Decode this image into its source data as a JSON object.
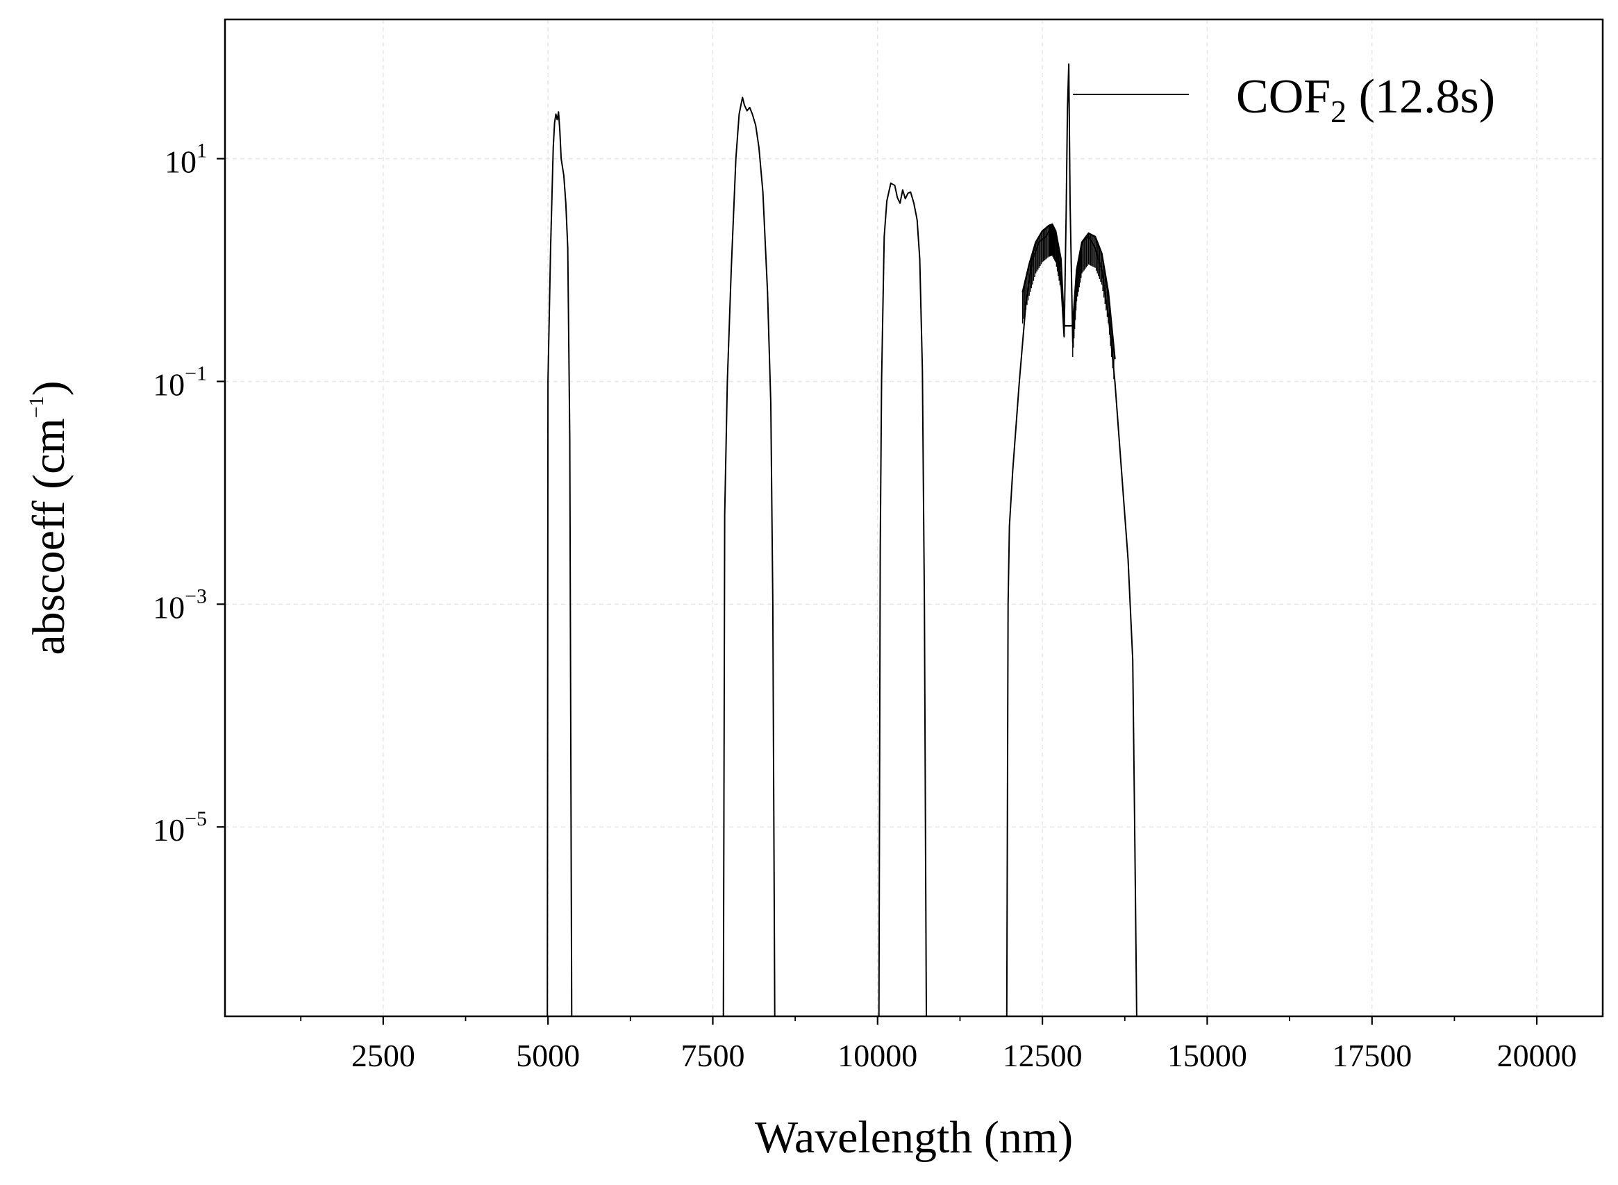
{
  "chart_data": {
    "type": "line",
    "title": "",
    "xlabel": "Wavelength (nm)",
    "ylabel": "abscoeff (cm",
    "ylabel_sup": "−1",
    "ylabel_close": ")",
    "yscale": "log",
    "xlim": [
      100,
      21000
    ],
    "ylim_log10": [
      -6.7,
      2.25
    ],
    "grid": true,
    "x_ticks": [
      {
        "value": 2500,
        "label": "2500"
      },
      {
        "value": 5000,
        "label": "5000"
      },
      {
        "value": 7500,
        "label": "7500"
      },
      {
        "value": 10000,
        "label": "10000"
      },
      {
        "value": 12500,
        "label": "12500"
      },
      {
        "value": 15000,
        "label": "15000"
      },
      {
        "value": 17500,
        "label": "17500"
      },
      {
        "value": 20000,
        "label": "20000"
      }
    ],
    "x_minor_ticks": [
      1250,
      3750,
      6250,
      8750,
      11250,
      13750,
      16250,
      18750
    ],
    "y_ticks": [
      {
        "exp": 1,
        "base": "10",
        "sup": "1"
      },
      {
        "exp": -1,
        "base": "10",
        "sup": "−1"
      },
      {
        "exp": -3,
        "base": "10",
        "sup": "−3"
      },
      {
        "exp": -5,
        "base": "10",
        "sup": "−5"
      }
    ],
    "legend": {
      "location": "top-right",
      "label_main": "COF",
      "label_sub": "2",
      "label_rest": " (12.8s)"
    },
    "series": [
      {
        "name": "COF2 (12.8s)",
        "color": "#000000",
        "bands": [
          {
            "points": [
              [
                4990,
                -6.8
              ],
              [
                5000,
                -1.0
              ],
              [
                5040,
                0.2
              ],
              [
                5080,
                1.1
              ],
              [
                5100,
                1.32
              ],
              [
                5120,
                1.4
              ],
              [
                5140,
                1.35
              ],
              [
                5160,
                1.42
              ],
              [
                5180,
                1.25
              ],
              [
                5200,
                1.0
              ],
              [
                5240,
                0.85
              ],
              [
                5270,
                0.6
              ],
              [
                5300,
                0.2
              ],
              [
                5330,
                -1.5
              ],
              [
                5360,
                -6.8
              ]
            ]
          },
          {
            "points": [
              [
                7660,
                -6.8
              ],
              [
                7680,
                -2.2
              ],
              [
                7720,
                -1.0
              ],
              [
                7780,
                0.0
              ],
              [
                7850,
                1.0
              ],
              [
                7900,
                1.4
              ],
              [
                7950,
                1.55
              ],
              [
                7980,
                1.48
              ],
              [
                8020,
                1.43
              ],
              [
                8060,
                1.46
              ],
              [
                8100,
                1.4
              ],
              [
                8150,
                1.3
              ],
              [
                8200,
                1.1
              ],
              [
                8260,
                0.7
              ],
              [
                8330,
                -0.2
              ],
              [
                8380,
                -1.2
              ],
              [
                8410,
                -3.0
              ],
              [
                8440,
                -6.8
              ]
            ]
          },
          {
            "points": [
              [
                10020,
                -6.8
              ],
              [
                10040,
                -2.5
              ],
              [
                10060,
                -1.0
              ],
              [
                10100,
                0.3
              ],
              [
                10140,
                0.62
              ],
              [
                10200,
                0.78
              ],
              [
                10260,
                0.76
              ],
              [
                10300,
                0.65
              ],
              [
                10340,
                0.6
              ],
              [
                10380,
                0.72
              ],
              [
                10420,
                0.64
              ],
              [
                10460,
                0.69
              ],
              [
                10500,
                0.7
              ],
              [
                10550,
                0.6
              ],
              [
                10600,
                0.45
              ],
              [
                10640,
                0.1
              ],
              [
                10680,
                -0.9
              ],
              [
                10710,
                -3.0
              ],
              [
                10740,
                -6.8
              ]
            ]
          },
          {
            "points": [
              [
                11960,
                -6.8
              ],
              [
                11980,
                -3.0
              ],
              [
                12000,
                -2.3
              ],
              [
                12050,
                -1.8
              ],
              [
                12150,
                -1.0
              ],
              [
                12250,
                -0.3
              ],
              [
                12350,
                0.1
              ],
              [
                12450,
                0.25
              ],
              [
                12550,
                0.3
              ],
              [
                12650,
                0.4
              ],
              [
                12720,
                0.25
              ],
              [
                12780,
                -0.1
              ],
              [
                12830,
                -0.6
              ],
              [
                12860,
                0.5
              ],
              [
                12880,
                1.45
              ],
              [
                12900,
                1.85
              ],
              [
                12920,
                0.6
              ],
              [
                12960,
                -0.65
              ],
              [
                13020,
                -0.2
              ],
              [
                13100,
                0.25
              ],
              [
                13200,
                0.3
              ],
              [
                13300,
                0.2
              ],
              [
                13400,
                0.0
              ],
              [
                13500,
                -0.4
              ],
              [
                13600,
                -1.0
              ],
              [
                13700,
                -1.8
              ],
              [
                13800,
                -2.6
              ],
              [
                13870,
                -3.5
              ],
              [
                13900,
                -5.0
              ],
              [
                13930,
                -6.8
              ]
            ]
          }
        ],
        "upper_envelopes": [
          {
            "points": [
              [
                12200,
                -0.2
              ],
              [
                12300,
                0.05
              ],
              [
                12400,
                0.25
              ],
              [
                12500,
                0.35
              ],
              [
                12600,
                0.4
              ],
              [
                12650,
                0.41
              ],
              [
                12700,
                0.35
              ],
              [
                12780,
                0.1
              ],
              [
                12830,
                -0.5
              ],
              [
                12960,
                -0.5
              ],
              [
                13020,
                0.0
              ],
              [
                13100,
                0.25
              ],
              [
                13200,
                0.33
              ],
              [
                13300,
                0.3
              ],
              [
                13400,
                0.15
              ],
              [
                13500,
                -0.2
              ],
              [
                13600,
                -0.8
              ]
            ]
          }
        ]
      }
    ]
  }
}
